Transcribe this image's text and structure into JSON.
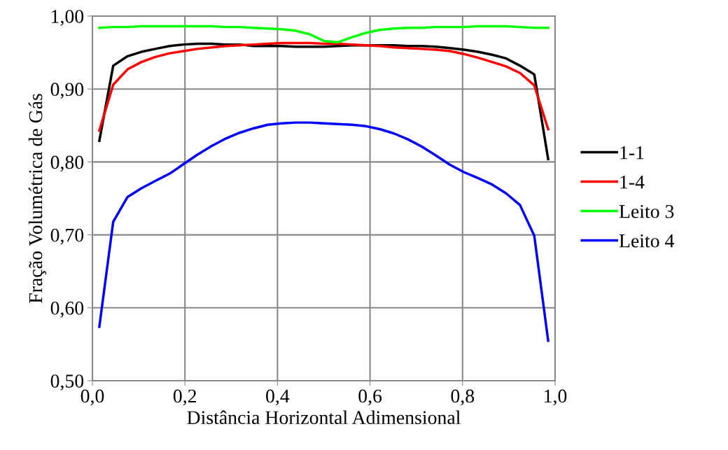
{
  "chart_data": {
    "type": "line",
    "xlabel": "Distância Horizontal Adimensional",
    "ylabel": "Fração Volumétrica de Gás",
    "x": [
      0.015,
      0.045,
      0.076,
      0.106,
      0.136,
      0.167,
      0.197,
      0.227,
      0.258,
      0.288,
      0.318,
      0.348,
      0.379,
      0.409,
      0.439,
      0.47,
      0.5,
      0.53,
      0.561,
      0.591,
      0.621,
      0.652,
      0.682,
      0.712,
      0.742,
      0.773,
      0.803,
      0.833,
      0.864,
      0.894,
      0.924,
      0.955,
      0.985
    ],
    "series": [
      {
        "name": "1-1",
        "color": "#000000",
        "values": [
          0.829,
          0.932,
          0.945,
          0.951,
          0.955,
          0.959,
          0.961,
          0.962,
          0.962,
          0.961,
          0.961,
          0.959,
          0.959,
          0.959,
          0.958,
          0.958,
          0.958,
          0.959,
          0.96,
          0.96,
          0.96,
          0.96,
          0.959,
          0.959,
          0.958,
          0.956,
          0.954,
          0.951,
          0.947,
          0.942,
          0.932,
          0.92,
          0.804
        ]
      },
      {
        "name": "1-4",
        "color": "#ff0000",
        "values": [
          0.843,
          0.906,
          0.927,
          0.937,
          0.944,
          0.949,
          0.952,
          0.955,
          0.957,
          0.959,
          0.96,
          0.961,
          0.962,
          0.963,
          0.963,
          0.963,
          0.962,
          0.962,
          0.961,
          0.96,
          0.959,
          0.957,
          0.956,
          0.955,
          0.954,
          0.952,
          0.948,
          0.943,
          0.937,
          0.931,
          0.922,
          0.905,
          0.845
        ]
      },
      {
        "name": "Leito 3",
        "color": "#00ff00",
        "values": [
          0.984,
          0.985,
          0.985,
          0.986,
          0.986,
          0.986,
          0.986,
          0.986,
          0.986,
          0.985,
          0.985,
          0.984,
          0.983,
          0.982,
          0.98,
          0.975,
          0.966,
          0.964,
          0.971,
          0.977,
          0.981,
          0.983,
          0.984,
          0.984,
          0.985,
          0.985,
          0.985,
          0.986,
          0.986,
          0.986,
          0.985,
          0.984,
          0.984
        ]
      },
      {
        "name": "Leito 4",
        "color": "#0000ff",
        "values": [
          0.574,
          0.718,
          0.752,
          0.764,
          0.774,
          0.784,
          0.797,
          0.81,
          0.822,
          0.832,
          0.84,
          0.846,
          0.851,
          0.853,
          0.854,
          0.854,
          0.853,
          0.852,
          0.851,
          0.849,
          0.845,
          0.839,
          0.831,
          0.821,
          0.809,
          0.796,
          0.786,
          0.778,
          0.769,
          0.757,
          0.741,
          0.699,
          0.555
        ]
      }
    ],
    "xlim": [
      0.0,
      1.0
    ],
    "xticks": [
      {
        "value": 0.0,
        "label": "0,0"
      },
      {
        "value": 0.2,
        "label": "0,2"
      },
      {
        "value": 0.4,
        "label": "0,4"
      },
      {
        "value": 0.6,
        "label": "0,6"
      },
      {
        "value": 0.8,
        "label": "0,8"
      },
      {
        "value": 1.0,
        "label": "1,0"
      }
    ],
    "ylim": [
      0.5,
      1.0
    ],
    "yticks": [
      {
        "value": 0.5,
        "label": "0,50"
      },
      {
        "value": 0.6,
        "label": "0,60"
      },
      {
        "value": 0.7,
        "label": "0,70"
      },
      {
        "value": 0.8,
        "label": "0,80"
      },
      {
        "value": 0.9,
        "label": "0,90"
      },
      {
        "value": 1.0,
        "label": "1,00"
      }
    ],
    "grid": true,
    "legend": "right",
    "marker": "none",
    "line_style": "solid"
  }
}
